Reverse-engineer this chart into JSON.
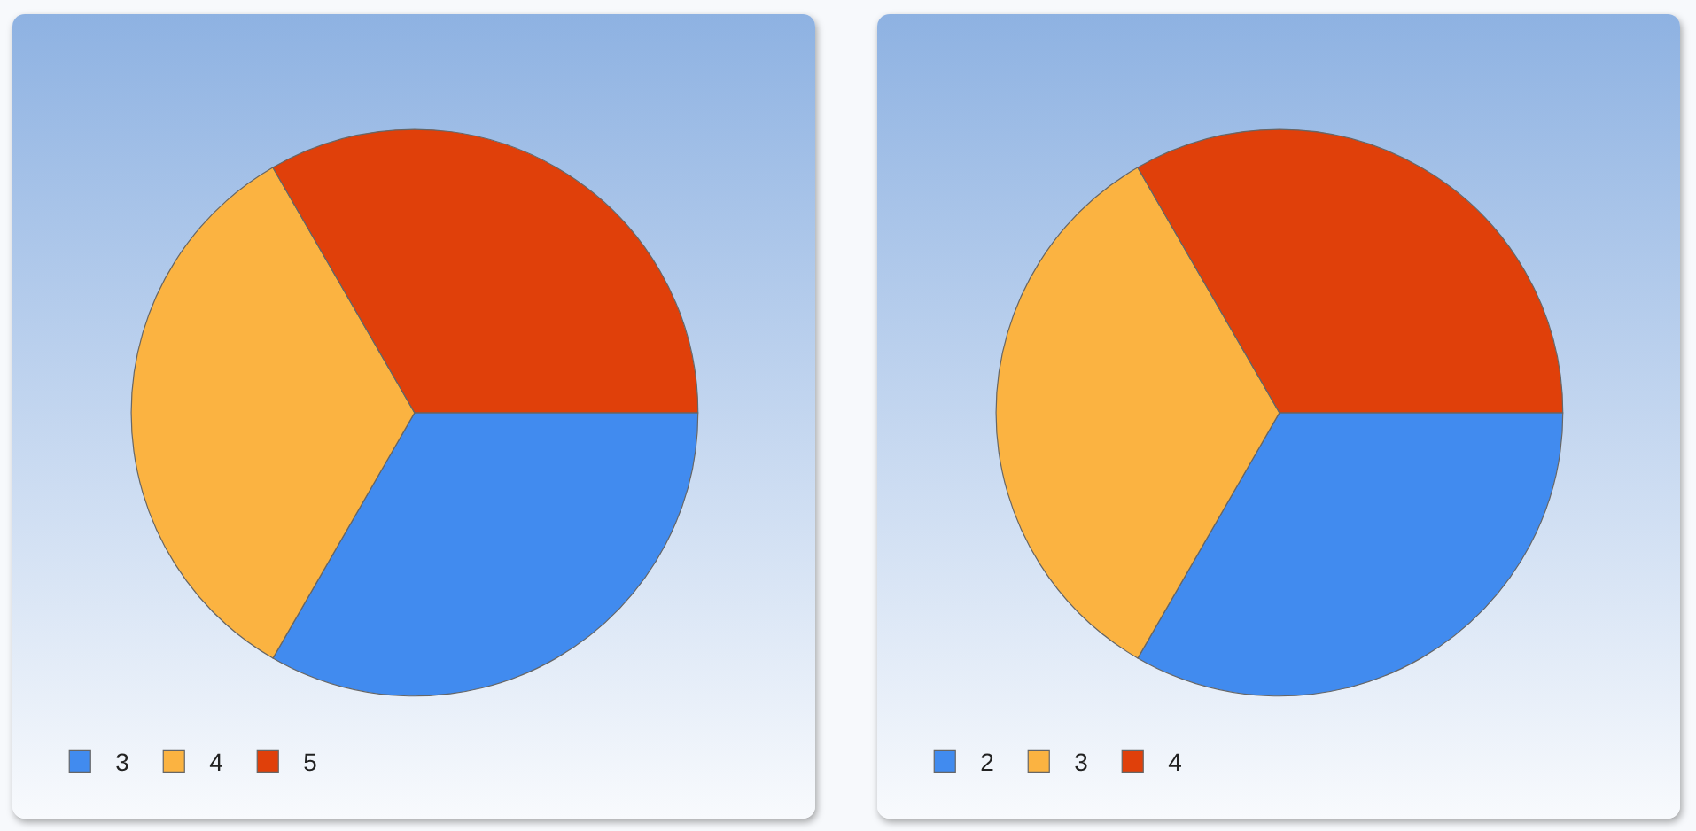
{
  "chart_data": [
    {
      "type": "pie",
      "categories": [
        "3",
        "4",
        "5"
      ],
      "values": [
        33.33,
        33.33,
        33.34
      ],
      "colors": [
        "#418bef",
        "#fbb341",
        "#e0400a"
      ],
      "legend": "bottom left"
    },
    {
      "type": "pie",
      "categories": [
        "2",
        "3",
        "4"
      ],
      "values": [
        33.33,
        33.33,
        33.34
      ],
      "colors": [
        "#418bef",
        "#fbb341",
        "#e0400a"
      ],
      "legend": "bottom left"
    }
  ]
}
